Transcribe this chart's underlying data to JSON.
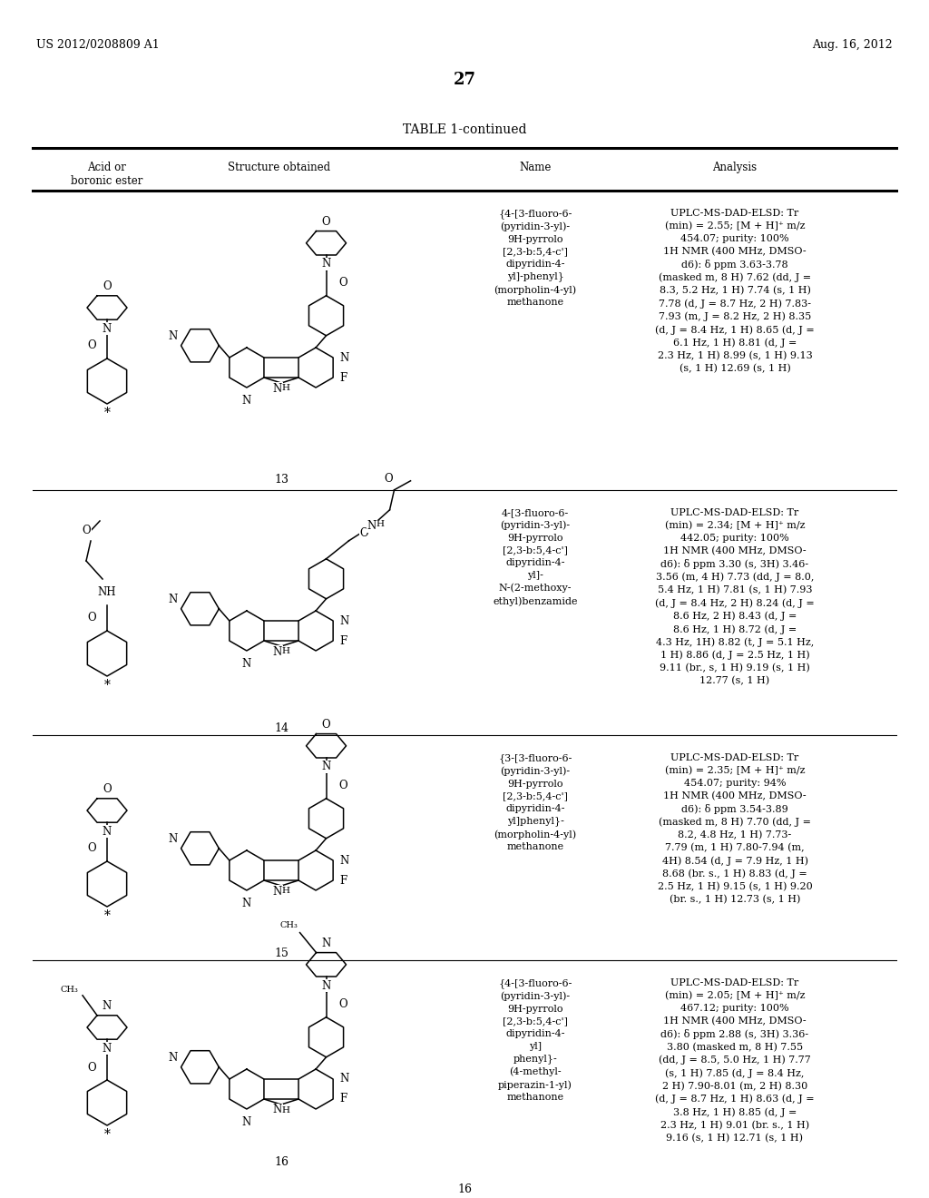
{
  "page_header_left": "US 2012/0208809 A1",
  "page_header_right": "Aug. 16, 2012",
  "page_number": "27",
  "table_title": "TABLE 1-continued",
  "background": "#ffffff",
  "rows": [
    {
      "number": "13",
      "name": "{4-[3-fluoro-6-\n(pyridin-3-yl)-\n9H-pyrrolo\n[2,3-b:5,4-c']\ndipyridin-4-\nyl]-phenyl}\n(morpholin-4-yl)\nmethanone",
      "analysis": "UPLC-MS-DAD-ELSD: Tr\n(min) = 2.55; [M + H]⁺ m/z\n454.07; purity: 100%\n1H NMR (400 MHz, DMSO-\nd6): δ ppm 3.63-3.78\n(masked m, 8 H) 7.62 (dd, J =\n8.3, 5.2 Hz, 1 H) 7.74 (s, 1 H)\n7.78 (d, J = 8.7 Hz, 2 H) 7.83-\n7.93 (m, J = 8.2 Hz, 2 H) 8.35\n(d, J = 8.4 Hz, 1 H) 8.65 (d, J =\n6.1 Hz, 1 H) 8.81 (d, J =\n2.3 Hz, 1 H) 8.99 (s, 1 H) 9.13\n(s, 1 H) 12.69 (s, 1 H)"
    },
    {
      "number": "14",
      "name": "4-[3-fluoro-6-\n(pyridin-3-yl)-\n9H-pyrrolo\n[2,3-b:5,4-c']\ndipyridin-4-\nyl]-\nN-(2-methoxy-\nethyl)benzamide",
      "analysis": "UPLC-MS-DAD-ELSD: Tr\n(min) = 2.34; [M + H]⁺ m/z\n442.05; purity: 100%\n1H NMR (400 MHz, DMSO-\nd6): δ ppm 3.30 (s, 3H) 3.46-\n3.56 (m, 4 H) 7.73 (dd, J = 8.0,\n5.4 Hz, 1 H) 7.81 (s, 1 H) 7.93\n(d, J = 8.4 Hz, 2 H) 8.24 (d, J =\n8.6 Hz, 2 H) 8.43 (d, J =\n8.6 Hz, 1 H) 8.72 (d, J =\n4.3 Hz, 1H) 8.82 (t, J = 5.1 Hz,\n1 H) 8.86 (d, J = 2.5 Hz, 1 H)\n9.11 (br., s, 1 H) 9.19 (s, 1 H)\n12.77 (s, 1 H)"
    },
    {
      "number": "15",
      "name": "{3-[3-fluoro-6-\n(pyridin-3-yl)-\n9H-pyrrolo\n[2,3-b:5,4-c']\ndipyridin-4-\nyl]phenyl}-\n(morpholin-4-yl)\nmethanone",
      "analysis": "UPLC-MS-DAD-ELSD: Tr\n(min) = 2.35; [M + H]⁺ m/z\n454.07; purity: 94%\n1H NMR (400 MHz, DMSO-\nd6): δ ppm 3.54-3.89\n(masked m, 8 H) 7.70 (dd, J =\n8.2, 4.8 Hz, 1 H) 7.73-\n7.79 (m, 1 H) 7.80-7.94 (m,\n4H) 8.54 (d, J = 7.9 Hz, 1 H)\n8.68 (br. s., 1 H) 8.83 (d, J =\n2.5 Hz, 1 H) 9.15 (s, 1 H) 9.20\n(br. s., 1 H) 12.73 (s, 1 H)"
    },
    {
      "number": "16",
      "name": "{4-[3-fluoro-6-\n(pyridin-3-yl)-\n9H-pyrrolo\n[2,3-b:5,4-c']\ndipyridin-4-\nyl]\nphenyl}-\n(4-methyl-\npiperazin-1-yl)\nmethanone",
      "analysis": "UPLC-MS-DAD-ELSD: Tr\n(min) = 2.05; [M + H]⁺ m/z\n467.12; purity: 100%\n1H NMR (400 MHz, DMSO-\nd6): δ ppm 2.88 (s, 3H) 3.36-\n3.80 (masked m, 8 H) 7.55\n(dd, J = 8.5, 5.0 Hz, 1 H) 7.77\n(s, 1 H) 7.85 (d, J = 8.4 Hz,\n2 H) 7.90-8.01 (m, 2 H) 8.30\n(d, J = 8.7 Hz, 1 H) 8.63 (d, J =\n3.8 Hz, 1 H) 8.85 (d, J =\n2.3 Hz, 1 H) 9.01 (br. s., 1 H)\n9.16 (s, 1 H) 12.71 (s, 1 H)"
    }
  ]
}
